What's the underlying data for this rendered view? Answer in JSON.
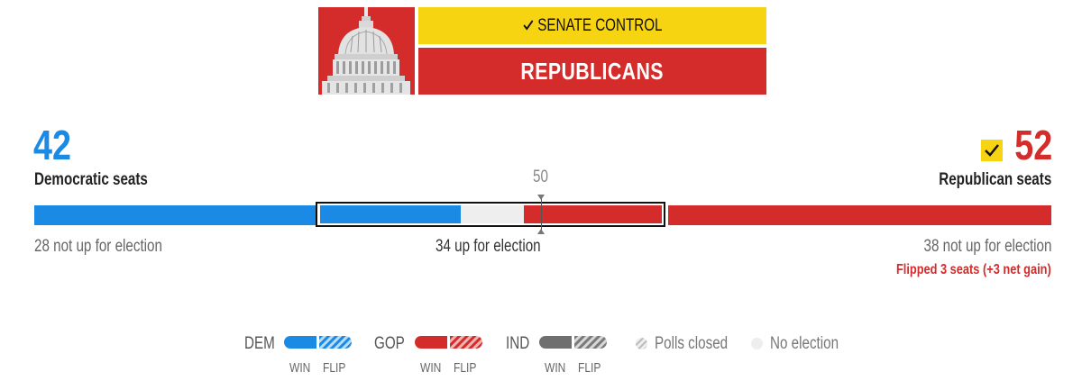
{
  "banner": {
    "control_label": "SENATE CONTROL",
    "winner": "REPUBLICANS"
  },
  "totals": {
    "dem_seats": "42",
    "dem_label": "Democratic seats",
    "rep_seats": "52",
    "rep_label": "Republican seats",
    "majority": "50"
  },
  "bar": {
    "dem_not_up": "28 not up for election",
    "up": "34 up for election",
    "rep_not_up": "38 not up for election",
    "flip_note": "Flipped 3 seats (+3 net gain)"
  },
  "legend": {
    "dem": "DEM",
    "gop": "GOP",
    "ind": "IND",
    "win": "WIN",
    "flip": "FLIP",
    "polls_closed": "Polls closed",
    "no_election": "No election"
  },
  "colors": {
    "dem": "#1a8ae5",
    "gop": "#d42b2b",
    "ind": "#6f6f6f",
    "accent": "#f7d412"
  },
  "icons": [
    "capitol-icon",
    "check-icon"
  ]
}
